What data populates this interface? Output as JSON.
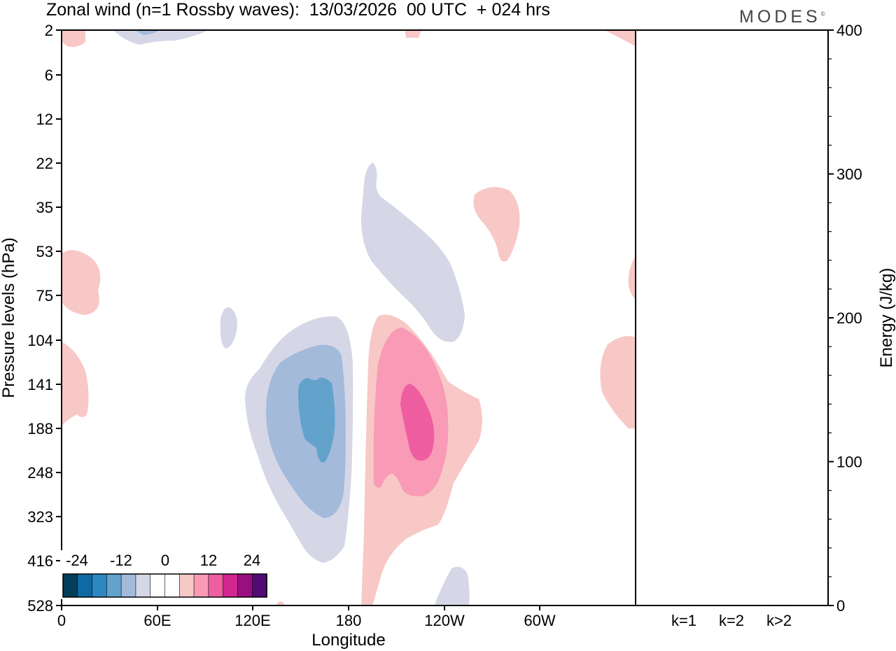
{
  "header": {
    "title": "Zonal wind (n=1 Rossby waves):  13/03/2026  00 UTC  + 024 hrs",
    "logo": "MODES"
  },
  "colors": {
    "blue_1": "#d5d7e7",
    "blue_2": "#a3badb",
    "blue_3": "#62a2cb",
    "blue_4": "#2d87c2",
    "blue_5": "#0f6aa3",
    "blue_6": "#053e5a",
    "red_1": "#f8c8c6",
    "red_2": "#f99ab6",
    "red_3": "#ee5ea0",
    "red_4": "#d0268e",
    "red_5": "#9a0f80",
    "red_6": "#520a74"
  },
  "chart_data": [
    {
      "type": "contour",
      "title": "Zonal wind (n=1 Rossby waves):  13/03/2026  00 UTC  + 024 hrs",
      "xlabel": "Longitude",
      "ylabel": "Pressure levels (hPa)",
      "x_ticks": [
        "0",
        "60E",
        "120E",
        "180",
        "120W",
        "60W"
      ],
      "y_ticks": [
        "2",
        "6",
        "12",
        "22",
        "35",
        "53",
        "75",
        "104",
        "141",
        "188",
        "248",
        "323",
        "416",
        "528"
      ],
      "colorbar": {
        "labels": [
          "-24",
          "-12",
          "0",
          "12",
          "24"
        ],
        "levels": [
          -24,
          -20,
          -16,
          -12,
          -8,
          -4,
          0,
          4,
          8,
          12,
          16,
          20,
          24
        ]
      },
      "features": [
        {
          "name": "negative core",
          "min_approx": -12,
          "lon": "165E",
          "level_hPa": 141
        },
        {
          "name": "positive core",
          "max_approx": 12,
          "lon": "150W",
          "level_hPa": 188
        }
      ]
    },
    {
      "type": "bar",
      "ylabel": "Energy (J/kg)",
      "categories": [
        "k=1",
        "k=2",
        "k>2"
      ],
      "values": [
        0.3,
        0.3,
        0.5
      ],
      "ylim": [
        0,
        400
      ],
      "y_ticks": [
        "0",
        "100",
        "200",
        "300",
        "400"
      ]
    }
  ]
}
